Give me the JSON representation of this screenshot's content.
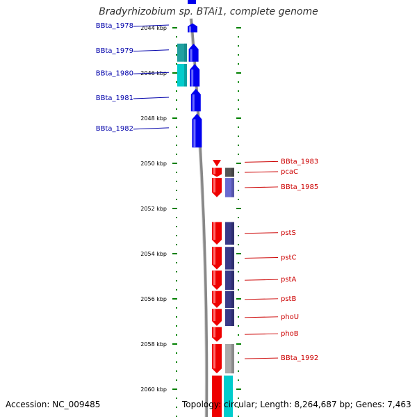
{
  "title": "Bradyrhizobium sp. BTAi1, complete genome",
  "footer": {
    "accession": "Accession: NC_009485",
    "summary": "Topology: circular; Length: 8,264,687 bp; Genes: 7,463"
  },
  "ruler": {
    "unit": "kbp",
    "ticks": [
      "2044 kbp",
      "2046 kbp",
      "2048 kbp",
      "2050 kbp",
      "2052 kbp",
      "2054 kbp",
      "2056 kbp",
      "2058 kbp",
      "2060 kbp"
    ],
    "start_kbp": 2043.9,
    "end_kbp": 2061.2
  },
  "colors": {
    "forward_gene": "#0000ee",
    "forward_cds": "#00cccc",
    "reverse_gene": "#ee0000",
    "reverse_cds_dark": "#3a3a88",
    "reverse_cds_light": "#6a6ad0",
    "rna_grey": "#aaaaaa",
    "rna_dark": "#555555",
    "forward_label": "#0000aa",
    "reverse_label": "#cc0000",
    "backbone": "#888888",
    "tick": "#008000"
  },
  "forward_genes": [
    {
      "label": "BBta_1978",
      "start": 2043.8,
      "end": 2044.2,
      "cds": "none"
    },
    {
      "label": "BBta_1979",
      "start": 2044.7,
      "end": 2045.5,
      "cds": "dark"
    },
    {
      "label": "BBta_1980",
      "start": 2045.6,
      "end": 2046.6,
      "cds": "light"
    },
    {
      "label": "BBta_1981",
      "start": 2046.7,
      "end": 2047.7,
      "cds": "none"
    },
    {
      "label": "BBta_1982",
      "start": 2047.8,
      "end": 2049.3,
      "cds": "none"
    }
  ],
  "reverse_genes": [
    {
      "label": "BBta_1983",
      "start": 2049.85,
      "end": 2050.05,
      "cds": "none"
    },
    {
      "label": "pcaC",
      "start": 2050.2,
      "end": 2050.6,
      "cds": "rna_dark"
    },
    {
      "label": "BBta_1985",
      "start": 2050.65,
      "end": 2051.5,
      "cds": "light"
    },
    {
      "label": "pstS",
      "start": 2052.6,
      "end": 2053.6,
      "cds": "dark"
    },
    {
      "label": "pstC",
      "start": 2053.7,
      "end": 2054.7,
      "cds": "dark"
    },
    {
      "label": "pstA",
      "start": 2054.75,
      "end": 2055.6,
      "cds": "dark"
    },
    {
      "label": "pstB",
      "start": 2055.65,
      "end": 2056.4,
      "cds": "dark"
    },
    {
      "label": "phoU",
      "start": 2056.45,
      "end": 2057.2,
      "cds": "dark"
    },
    {
      "label": "phoB",
      "start": 2057.25,
      "end": 2057.9,
      "cds": "none"
    },
    {
      "label": "BBta_1992",
      "start": 2058.0,
      "end": 2059.3,
      "cds": "rna_grey"
    }
  ]
}
